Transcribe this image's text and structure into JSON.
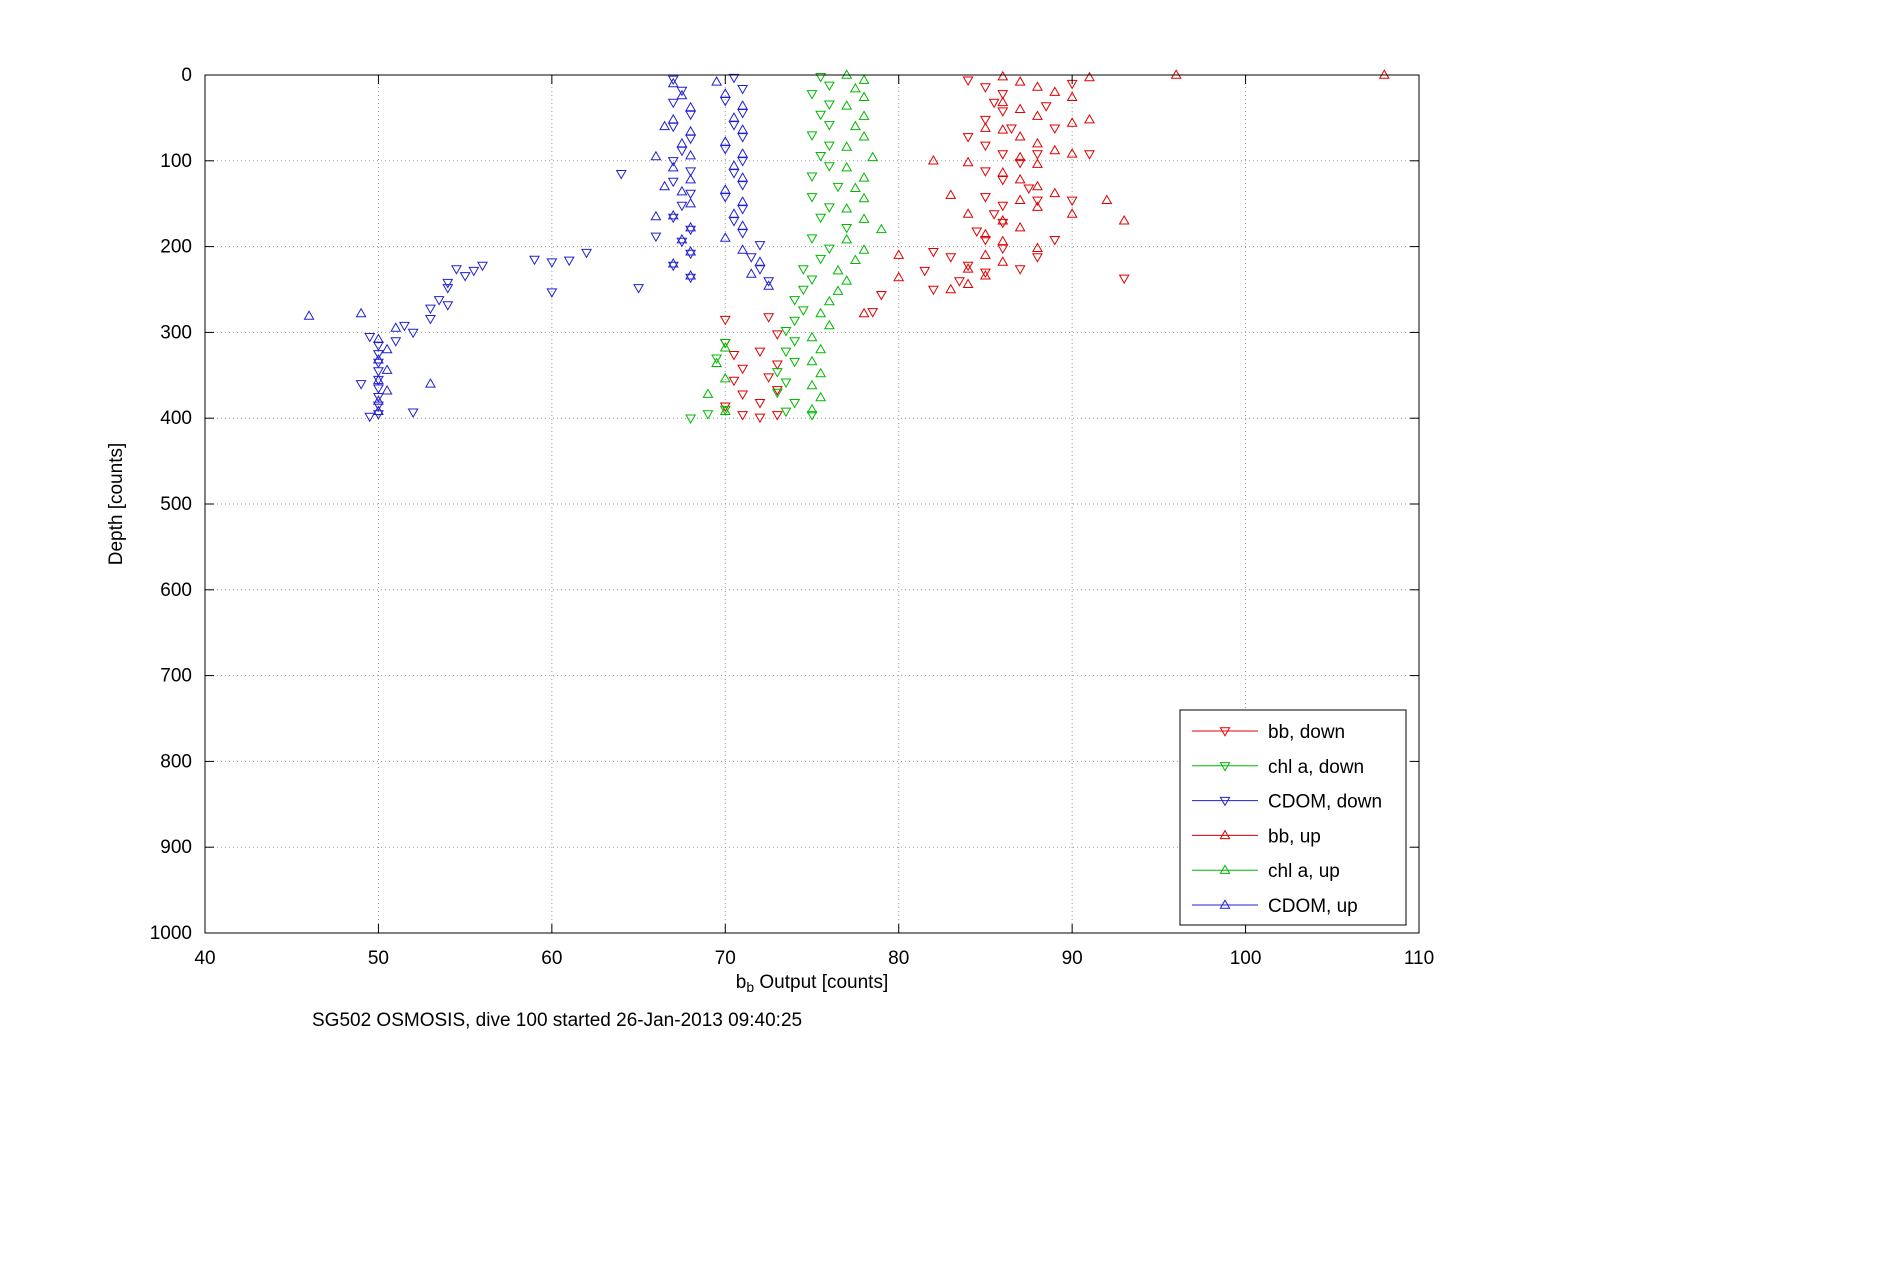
{
  "figure": {
    "title": "SG502 OSMOSIS, dive 100 started 26-Jan-2013 09:40:25",
    "xlabel_pre": "b",
    "xlabel_sub": "b",
    "xlabel_post": " Output [counts]",
    "ylabel": "Depth [counts]"
  },
  "chart_data": {
    "type": "scatter",
    "title": "SG502 OSMOSIS, dive 100 started 26-Jan-2013 09:40:25",
    "xlabel": "b_b Output [counts]",
    "ylabel": "Depth [counts]",
    "xlim": [
      40,
      110
    ],
    "ylim": [
      0,
      1000
    ],
    "y_reversed": true,
    "grid": true,
    "legend_position": "lower right",
    "xticks": [
      40,
      50,
      60,
      70,
      80,
      90,
      100,
      110
    ],
    "yticks": [
      0,
      100,
      200,
      300,
      400,
      500,
      600,
      700,
      800,
      900,
      1000
    ],
    "series": [
      {
        "name": "bb, down",
        "color": "#e00000",
        "marker": "triangle-down",
        "points": [
          [
            84,
            6
          ],
          [
            85,
            14
          ],
          [
            86,
            22
          ],
          [
            85.5,
            32
          ],
          [
            86,
            42
          ],
          [
            85,
            52
          ],
          [
            86.5,
            62
          ],
          [
            84,
            72
          ],
          [
            85,
            82
          ],
          [
            86,
            92
          ],
          [
            87,
            102
          ],
          [
            85,
            112
          ],
          [
            86,
            122
          ],
          [
            87.5,
            132
          ],
          [
            85,
            142
          ],
          [
            86,
            152
          ],
          [
            88,
            146
          ],
          [
            85.5,
            162
          ],
          [
            86,
            172
          ],
          [
            84.5,
            182
          ],
          [
            85,
            192
          ],
          [
            86,
            202
          ],
          [
            83,
            212
          ],
          [
            84,
            222
          ],
          [
            85,
            230
          ],
          [
            83.5,
            240
          ],
          [
            82,
            206
          ],
          [
            82,
            250
          ],
          [
            81.5,
            228
          ],
          [
            88,
            92
          ],
          [
            89,
            62
          ],
          [
            88.5,
            36
          ],
          [
            90,
            10
          ],
          [
            91,
            92
          ],
          [
            90,
            146
          ],
          [
            89,
            192
          ],
          [
            88,
            212
          ],
          [
            87,
            226
          ],
          [
            93,
            237
          ],
          [
            79,
            256
          ],
          [
            78.5,
            276
          ],
          [
            70,
            285
          ],
          [
            70,
            312
          ],
          [
            70.5,
            326
          ],
          [
            71,
            342
          ],
          [
            70.5,
            356
          ],
          [
            71,
            372
          ],
          [
            70,
            386
          ],
          [
            71,
            396
          ],
          [
            72,
            399
          ],
          [
            72.5,
            282
          ],
          [
            73,
            302
          ],
          [
            72,
            322
          ],
          [
            73,
            337
          ],
          [
            72.5,
            352
          ],
          [
            73,
            367
          ],
          [
            72,
            382
          ],
          [
            73,
            396
          ]
        ]
      },
      {
        "name": "chl a, down",
        "color": "#00b800",
        "marker": "triangle-down",
        "points": [
          [
            75.5,
            2
          ],
          [
            76,
            12
          ],
          [
            75,
            22
          ],
          [
            76,
            34
          ],
          [
            75.5,
            46
          ],
          [
            76,
            58
          ],
          [
            75,
            70
          ],
          [
            76,
            82
          ],
          [
            75.5,
            94
          ],
          [
            76,
            106
          ],
          [
            75,
            118
          ],
          [
            76.5,
            130
          ],
          [
            75,
            142
          ],
          [
            76,
            154
          ],
          [
            75.5,
            166
          ],
          [
            77,
            178
          ],
          [
            75,
            190
          ],
          [
            76,
            202
          ],
          [
            75.5,
            214
          ],
          [
            74.5,
            226
          ],
          [
            75,
            238
          ],
          [
            74.5,
            250
          ],
          [
            74,
            262
          ],
          [
            74.5,
            274
          ],
          [
            74,
            286
          ],
          [
            73.5,
            298
          ],
          [
            74,
            310
          ],
          [
            73.5,
            322
          ],
          [
            74,
            334
          ],
          [
            73,
            346
          ],
          [
            73.5,
            358
          ],
          [
            73,
            370
          ],
          [
            74,
            382
          ],
          [
            73.5,
            392
          ],
          [
            75,
            396
          ],
          [
            70,
            312
          ],
          [
            69.5,
            330
          ],
          [
            70,
            390
          ],
          [
            69,
            395
          ],
          [
            68,
            400
          ]
        ]
      },
      {
        "name": "CDOM, down",
        "color": "#2020d0",
        "marker": "triangle-down",
        "points": [
          [
            67,
            5
          ],
          [
            67.5,
            18
          ],
          [
            67,
            32
          ],
          [
            68,
            46
          ],
          [
            67,
            60
          ],
          [
            68,
            74
          ],
          [
            67.5,
            88
          ],
          [
            67,
            100
          ],
          [
            68,
            112
          ],
          [
            67,
            124
          ],
          [
            68,
            138
          ],
          [
            67.5,
            152
          ],
          [
            67,
            166
          ],
          [
            68,
            180
          ],
          [
            67.5,
            194
          ],
          [
            68,
            208
          ],
          [
            67,
            222
          ],
          [
            68,
            236
          ],
          [
            70.5,
            3
          ],
          [
            71,
            16
          ],
          [
            70,
            30
          ],
          [
            71,
            44
          ],
          [
            70.5,
            58
          ],
          [
            71,
            72
          ],
          [
            70,
            86
          ],
          [
            71,
            100
          ],
          [
            70.5,
            114
          ],
          [
            71,
            128
          ],
          [
            70,
            142
          ],
          [
            71,
            156
          ],
          [
            70.5,
            170
          ],
          [
            71,
            184
          ],
          [
            72,
            198
          ],
          [
            71.5,
            212
          ],
          [
            72,
            226
          ],
          [
            72.5,
            240
          ],
          [
            64,
            115
          ],
          [
            66,
            188
          ],
          [
            65,
            248
          ],
          [
            62,
            207
          ],
          [
            61,
            216
          ],
          [
            60,
            218
          ],
          [
            60,
            253
          ],
          [
            59,
            215
          ],
          [
            56,
            222
          ],
          [
            55.5,
            228
          ],
          [
            55,
            234
          ],
          [
            54.5,
            226
          ],
          [
            54,
            242
          ],
          [
            54,
            248
          ],
          [
            53.5,
            262
          ],
          [
            54,
            268
          ],
          [
            53,
            272
          ],
          [
            53,
            284
          ],
          [
            52,
            300
          ],
          [
            51.5,
            292
          ],
          [
            51,
            310
          ],
          [
            52,
            393
          ],
          [
            50,
            315
          ],
          [
            50,
            325
          ],
          [
            50,
            335
          ],
          [
            50,
            345
          ],
          [
            50,
            355
          ],
          [
            50,
            365
          ],
          [
            50,
            375
          ],
          [
            50,
            385
          ],
          [
            50,
            395
          ],
          [
            49.5,
            305
          ],
          [
            49,
            360
          ],
          [
            49.5,
            398
          ]
        ]
      },
      {
        "name": "bb, up",
        "color": "#e00000",
        "marker": "triangle-up",
        "points": [
          [
            108,
            0
          ],
          [
            96,
            0
          ],
          [
            91,
            3
          ],
          [
            86,
            2
          ],
          [
            87,
            8
          ],
          [
            88,
            14
          ],
          [
            89,
            20
          ],
          [
            90,
            26
          ],
          [
            86,
            32
          ],
          [
            87,
            40
          ],
          [
            88,
            48
          ],
          [
            90,
            56
          ],
          [
            86,
            64
          ],
          [
            87,
            72
          ],
          [
            88,
            80
          ],
          [
            89,
            88
          ],
          [
            87,
            96
          ],
          [
            88,
            104
          ],
          [
            86,
            114
          ],
          [
            87,
            122
          ],
          [
            88,
            130
          ],
          [
            89,
            138
          ],
          [
            87,
            146
          ],
          [
            88,
            154
          ],
          [
            90,
            162
          ],
          [
            86,
            170
          ],
          [
            87,
            178
          ],
          [
            85,
            186
          ],
          [
            86,
            194
          ],
          [
            88,
            202
          ],
          [
            85,
            210
          ],
          [
            86,
            218
          ],
          [
            84,
            226
          ],
          [
            85,
            234
          ],
          [
            84,
            244
          ],
          [
            83,
            250
          ],
          [
            93,
            170
          ],
          [
            92,
            146
          ],
          [
            91,
            52
          ],
          [
            90,
            92
          ],
          [
            84,
            162
          ],
          [
            84,
            102
          ],
          [
            85,
            62
          ],
          [
            82,
            100
          ],
          [
            83,
            140
          ],
          [
            80,
            210
          ],
          [
            80,
            236
          ],
          [
            78,
            278
          ]
        ]
      },
      {
        "name": "chl a, up",
        "color": "#00b800",
        "marker": "triangle-up",
        "points": [
          [
            77,
            0
          ],
          [
            78,
            6
          ],
          [
            77.5,
            16
          ],
          [
            78,
            26
          ],
          [
            77,
            36
          ],
          [
            78,
            48
          ],
          [
            77.5,
            60
          ],
          [
            78,
            72
          ],
          [
            77,
            84
          ],
          [
            78.5,
            96
          ],
          [
            77,
            108
          ],
          [
            78,
            120
          ],
          [
            77.5,
            132
          ],
          [
            78,
            144
          ],
          [
            77,
            156
          ],
          [
            78,
            168
          ],
          [
            79,
            180
          ],
          [
            77,
            192
          ],
          [
            78,
            204
          ],
          [
            77.5,
            216
          ],
          [
            76.5,
            228
          ],
          [
            77,
            240
          ],
          [
            76.5,
            252
          ],
          [
            76,
            264
          ],
          [
            75.5,
            278
          ],
          [
            76,
            292
          ],
          [
            75,
            306
          ],
          [
            75.5,
            320
          ],
          [
            75,
            334
          ],
          [
            75.5,
            348
          ],
          [
            75,
            362
          ],
          [
            75.5,
            376
          ],
          [
            75,
            390
          ],
          [
            70,
            318
          ],
          [
            69.5,
            336
          ],
          [
            70,
            354
          ],
          [
            69,
            372
          ],
          [
            70,
            392
          ]
        ]
      },
      {
        "name": "CDOM, up",
        "color": "#2020d0",
        "marker": "triangle-up",
        "points": [
          [
            67,
            10
          ],
          [
            67.5,
            24
          ],
          [
            68,
            38
          ],
          [
            67,
            52
          ],
          [
            68,
            66
          ],
          [
            67.5,
            80
          ],
          [
            68,
            94
          ],
          [
            67,
            108
          ],
          [
            68,
            122
          ],
          [
            67.5,
            136
          ],
          [
            68,
            150
          ],
          [
            67,
            164
          ],
          [
            68,
            178
          ],
          [
            67.5,
            192
          ],
          [
            68,
            206
          ],
          [
            67,
            220
          ],
          [
            68,
            234
          ],
          [
            69.5,
            8
          ],
          [
            70,
            22
          ],
          [
            71,
            36
          ],
          [
            70.5,
            50
          ],
          [
            71,
            64
          ],
          [
            70,
            78
          ],
          [
            71,
            92
          ],
          [
            70.5,
            106
          ],
          [
            71,
            120
          ],
          [
            70,
            134
          ],
          [
            71,
            148
          ],
          [
            70.5,
            162
          ],
          [
            71,
            176
          ],
          [
            70,
            190
          ],
          [
            71,
            204
          ],
          [
            72,
            218
          ],
          [
            71.5,
            232
          ],
          [
            72.5,
            246
          ],
          [
            66.5,
            60
          ],
          [
            66,
            95
          ],
          [
            66.5,
            130
          ],
          [
            66,
            165
          ],
          [
            46,
            281
          ],
          [
            49,
            278
          ],
          [
            53,
            360
          ],
          [
            51,
            295
          ],
          [
            50,
            308
          ],
          [
            50.5,
            320
          ],
          [
            50,
            332
          ],
          [
            50.5,
            344
          ],
          [
            50,
            356
          ],
          [
            50.5,
            368
          ],
          [
            50,
            380
          ],
          [
            50,
            392
          ]
        ]
      }
    ]
  }
}
